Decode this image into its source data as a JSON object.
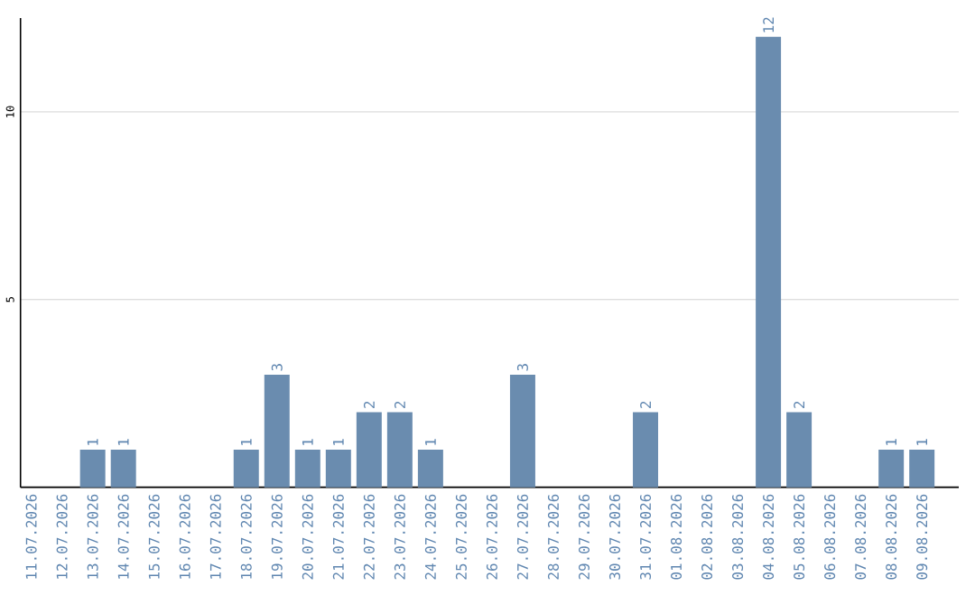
{
  "chart_data": {
    "type": "bar",
    "categories": [
      "11.07.2026",
      "12.07.2026",
      "13.07.2026",
      "14.07.2026",
      "15.07.2026",
      "16.07.2026",
      "17.07.2026",
      "18.07.2026",
      "19.07.2026",
      "20.07.2026",
      "21.07.2026",
      "22.07.2026",
      "23.07.2026",
      "24.07.2026",
      "25.07.2026",
      "26.07.2026",
      "27.07.2026",
      "28.07.2026",
      "29.07.2026",
      "30.07.2026",
      "31.07.2026",
      "01.08.2026",
      "02.08.2026",
      "03.08.2026",
      "04.08.2026",
      "05.08.2026",
      "06.08.2026",
      "07.08.2026",
      "08.08.2026",
      "09.08.2026"
    ],
    "values": [
      0,
      0,
      1,
      1,
      0,
      0,
      0,
      1,
      3,
      1,
      1,
      2,
      2,
      1,
      0,
      0,
      3,
      0,
      0,
      0,
      2,
      0,
      0,
      0,
      12,
      2,
      0,
      0,
      1,
      1
    ],
    "value_labels": [
      null,
      null,
      "1",
      "1",
      null,
      null,
      null,
      "1",
      "3",
      "1",
      "1",
      "2",
      "2",
      "1",
      null,
      null,
      "3",
      null,
      null,
      null,
      "2",
      null,
      null,
      null,
      "12",
      "2",
      null,
      null,
      "1",
      "1"
    ],
    "color": "#6a8caf",
    "ylim": [
      0,
      12.5
    ],
    "yticks": [
      5,
      10
    ],
    "grid": "y"
  }
}
